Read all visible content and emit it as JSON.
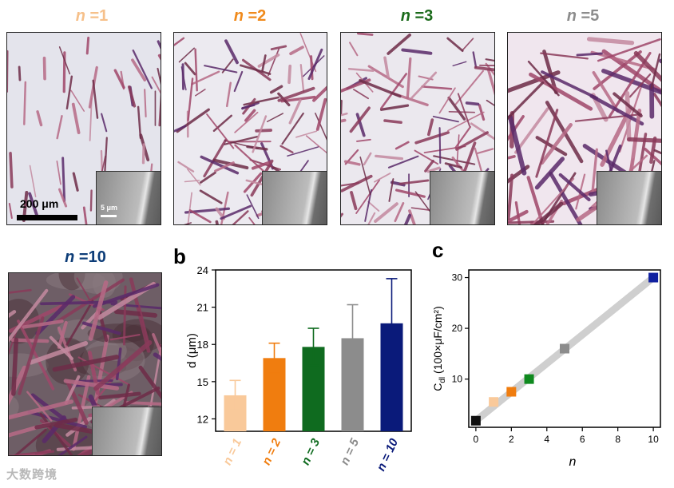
{
  "panel_a": {
    "panels": [
      {
        "n_label": "n",
        "n_value": "=1",
        "color": "#f6c08a"
      },
      {
        "n_label": "n",
        "n_value": "=2",
        "color": "#f08a1c"
      },
      {
        "n_label": "n",
        "n_value": "=3",
        "color": "#1b6b1b"
      },
      {
        "n_label": "n",
        "n_value": "=5",
        "color": "#8c8c8c"
      },
      {
        "n_label": "n",
        "n_value": "=10",
        "color": "#0d3d78"
      }
    ],
    "scale_main": "200 μm",
    "scale_inset": "5 μm"
  },
  "panel_b_label": "b",
  "panel_c_label": "c",
  "watermark": "大数跨境",
  "chart_data": [
    {
      "type": "bar",
      "panel": "b",
      "ylabel": "d (μm)",
      "ylim": [
        11,
        24
      ],
      "yticks": [
        12,
        15,
        18,
        21,
        24
      ],
      "categories": [
        "n = 1",
        "n = 2",
        "n = 3",
        "n = 5",
        "n = 10"
      ],
      "values": [
        13.9,
        16.9,
        17.8,
        18.5,
        19.7
      ],
      "errors": [
        1.2,
        1.2,
        1.5,
        2.7,
        3.6
      ],
      "colors": [
        "#f9c99a",
        "#f07d0f",
        "#0f6b1f",
        "#8c8c8c",
        "#0a1a7a"
      ]
    },
    {
      "type": "scatter",
      "panel": "c",
      "xlabel": "n",
      "ylabel": "C",
      "ylabel_sub": "dl",
      "ylabel_rest": " (100×μF/cm²)",
      "xlim": [
        -0.4,
        10.4
      ],
      "ylim": [
        0.5,
        31.5
      ],
      "xticks": [
        0,
        2,
        4,
        6,
        8,
        10
      ],
      "yticks": [
        10,
        20,
        30
      ],
      "x": [
        0,
        1,
        2,
        3,
        5,
        10
      ],
      "y": [
        1.8,
        5.5,
        7.5,
        10,
        16,
        30
      ],
      "colors": [
        "#111111",
        "#f9c99a",
        "#f07d0f",
        "#0f8a1f",
        "#8c8c8c",
        "#1020a0"
      ],
      "fit_line": {
        "x": [
          0,
          10
        ],
        "y": [
          1.8,
          30
        ]
      }
    }
  ]
}
